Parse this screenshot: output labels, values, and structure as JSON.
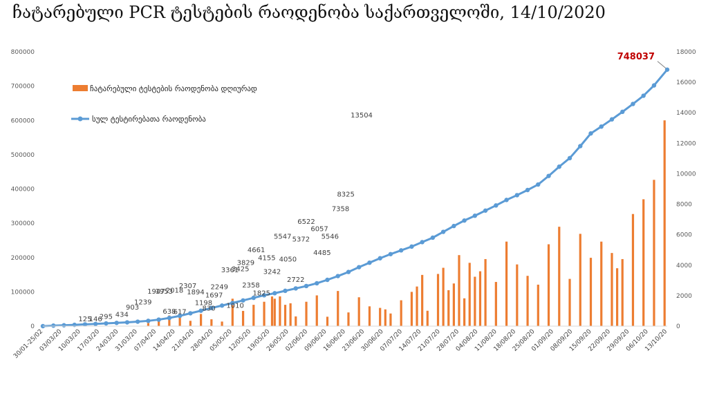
{
  "chart_data": {
    "type": "bar+line",
    "title": "ჩატარებული PCR ტესტების რაოდენობა საქართველოში, 14/10/2020",
    "colors": {
      "bars": "#ed7d31",
      "line": "#5b9bd5",
      "last_label": "#c00000"
    },
    "legend": {
      "position": "top-left",
      "items": [
        {
          "name": "ჩატარებული ტესტების რაოდენობა დღიურად",
          "type": "bar"
        },
        {
          "name": "სულ ტესტირებათა რაოდენობა",
          "type": "line"
        }
      ]
    },
    "y_left": {
      "min": 0,
      "max": 800000,
      "ticks": [
        "0",
        "100000",
        "200000",
        "300000",
        "400000",
        "500000",
        "600000",
        "700000",
        "800000"
      ]
    },
    "y_right": {
      "min": 0,
      "max": 18000,
      "ticks": [
        "0",
        "2000",
        "4000",
        "6000",
        "8000",
        "10000",
        "12000",
        "14000",
        "16000",
        "18000"
      ]
    },
    "x_tick_labels": [
      "30/01-25/02",
      "03/03/20",
      "10/03/20",
      "17/03/20",
      "24/03/20",
      "31/03/20",
      "07/04/20",
      "14/04/20",
      "21/04/20",
      "28/04/20",
      "05/05/20",
      "12/05/20",
      "19/05/20",
      "26/05/20",
      "02/06/20",
      "09/06/20",
      "16/06/20",
      "23/06/20",
      "30/06/20",
      "07/07/20",
      "14/07/20",
      "21/07/20",
      "28/07/20",
      "04/08/20",
      "11/08/20",
      "18/08/20",
      "25/08/20",
      "01/09/20",
      "08/09/20",
      "15/09/20",
      "22/09/20",
      "29/09/20",
      "06/10/20",
      "13/10/20"
    ],
    "series": [
      {
        "name": "სულ ტესტირებათა რაოდენობა",
        "axis": "left",
        "x_tick_index": [
          0,
          4,
          8,
          12,
          16,
          20,
          24,
          28,
          32,
          36,
          40,
          44,
          48,
          52,
          56,
          60,
          64,
          68,
          72,
          76,
          80,
          84,
          88,
          92,
          96,
          100,
          104,
          108,
          112,
          116,
          120,
          124,
          128,
          132,
          136,
          140,
          144,
          148,
          152,
          156,
          160,
          164,
          168,
          172,
          176,
          180,
          184,
          188,
          192,
          196,
          200,
          204,
          208,
          212,
          216,
          220,
          224,
          228,
          232,
          237
        ],
        "values": [
          0,
          1500,
          2500,
          3800,
          5200,
          6500,
          8000,
          9500,
          11000,
          13000,
          15500,
          19000,
          24000,
          30000,
          37500,
          45000,
          53000,
          60000,
          67500,
          75000,
          82500,
          90000,
          96000,
          103000,
          110000,
          117000,
          125000,
          135000,
          146000,
          158000,
          172000,
          185000,
          198000,
          210000,
          221000,
          232000,
          245000,
          258000,
          275000,
          292000,
          308000,
          322000,
          337000,
          352000,
          368000,
          382000,
          397000,
          413000,
          438000,
          465000,
          490000,
          525000,
          562000,
          582000,
          603000,
          625000,
          648000,
          672000,
          702000,
          748037
        ]
      },
      {
        "name": "ჩატარებული ტესტების რაოდენობა დღიურად",
        "axis": "right",
        "x_tick_index": [
          40,
          44,
          48,
          52,
          56,
          60,
          64,
          68,
          72,
          76,
          80,
          84,
          87,
          88,
          90,
          92,
          94,
          96,
          100,
          104,
          108,
          112,
          116,
          120,
          124,
          128,
          130,
          132,
          136,
          140,
          142,
          144,
          146,
          150,
          152,
          154,
          156,
          158,
          160,
          162,
          164,
          166,
          168,
          172,
          176,
          180,
          184,
          188,
          192,
          196,
          200,
          204,
          208,
          212,
          216,
          218,
          220,
          224,
          228,
          232,
          236
        ],
        "values": [
          200,
          500,
          700,
          600,
          350,
          800,
          450,
          300,
          1800,
          1000,
          1400,
          1600,
          1947,
          1800,
          1953,
          1400,
          1500,
          638,
          1600,
          2018,
          617,
          2307,
          900,
          1894,
          1300,
          1198,
          1100,
          830,
          1697,
          2249,
          2600,
          3361,
          1010,
          3425,
          3829,
          2358,
          2800,
          4661,
          1825,
          4155,
          3242,
          3600,
          4400,
          2900,
          5547,
          4050,
          3300,
          2722,
          5372,
          6522,
          3100,
          6057,
          4485,
          5546,
          4800,
          3800,
          4400,
          7358,
          8325,
          9600,
          13504
        ]
      }
    ],
    "data_labels": [
      {
        "text": "125",
        "x_tick_index": 16,
        "value": 125,
        "axis": "right"
      },
      {
        "text": "146",
        "x_tick_index": 20,
        "value": 146,
        "axis": "right"
      },
      {
        "text": "295",
        "x_tick_index": 24,
        "value": 295,
        "axis": "right"
      },
      {
        "text": "434",
        "x_tick_index": 30,
        "value": 434,
        "axis": "right"
      },
      {
        "text": "903",
        "x_tick_index": 34,
        "value": 903,
        "axis": "right"
      },
      {
        "text": "1239",
        "x_tick_index": 38,
        "value": 1239,
        "axis": "right"
      },
      {
        "text": "1947",
        "x_tick_index": 43,
        "value": 1947,
        "axis": "right"
      },
      {
        "text": "1953",
        "x_tick_index": 46,
        "value": 1953,
        "axis": "right"
      },
      {
        "text": "638",
        "x_tick_index": 48,
        "value": 638,
        "axis": "right"
      },
      {
        "text": "2018",
        "x_tick_index": 50,
        "value": 2018,
        "axis": "right"
      },
      {
        "text": "617",
        "x_tick_index": 52,
        "value": 617,
        "axis": "right"
      },
      {
        "text": "2307",
        "x_tick_index": 55,
        "value": 2307,
        "axis": "right"
      },
      {
        "text": "1894",
        "x_tick_index": 58,
        "value": 1894,
        "axis": "right"
      },
      {
        "text": "1198",
        "x_tick_index": 61,
        "value": 1198,
        "axis": "right"
      },
      {
        "text": "830",
        "x_tick_index": 63,
        "value": 830,
        "axis": "right"
      },
      {
        "text": "1697",
        "x_tick_index": 65,
        "value": 1697,
        "axis": "right"
      },
      {
        "text": "2249",
        "x_tick_index": 67,
        "value": 2249,
        "axis": "right"
      },
      {
        "text": "3361",
        "x_tick_index": 71,
        "value": 3361,
        "axis": "right"
      },
      {
        "text": "1010",
        "x_tick_index": 73,
        "value": 1010,
        "axis": "right"
      },
      {
        "text": "3425",
        "x_tick_index": 75,
        "value": 3425,
        "axis": "right"
      },
      {
        "text": "3829",
        "x_tick_index": 77,
        "value": 3829,
        "axis": "right"
      },
      {
        "text": "2358",
        "x_tick_index": 79,
        "value": 2358,
        "axis": "right"
      },
      {
        "text": "4661",
        "x_tick_index": 81,
        "value": 4661,
        "axis": "right"
      },
      {
        "text": "1825",
        "x_tick_index": 83,
        "value": 1825,
        "axis": "right"
      },
      {
        "text": "4155",
        "x_tick_index": 85,
        "value": 4155,
        "axis": "right"
      },
      {
        "text": "3242",
        "x_tick_index": 87,
        "value": 3242,
        "axis": "right"
      },
      {
        "text": "5547",
        "x_tick_index": 91,
        "value": 5547,
        "axis": "right"
      },
      {
        "text": "4050",
        "x_tick_index": 93,
        "value": 4050,
        "axis": "right"
      },
      {
        "text": "2722",
        "x_tick_index": 96,
        "value": 2722,
        "axis": "right"
      },
      {
        "text": "5372",
        "x_tick_index": 98,
        "value": 5372,
        "axis": "right"
      },
      {
        "text": "6522",
        "x_tick_index": 100,
        "value": 6522,
        "axis": "right"
      },
      {
        "text": "6057",
        "x_tick_index": 105,
        "value": 6057,
        "axis": "right"
      },
      {
        "text": "4485",
        "x_tick_index": 106,
        "value": 4485,
        "axis": "right"
      },
      {
        "text": "5546",
        "x_tick_index": 109,
        "value": 5546,
        "axis": "right"
      },
      {
        "text": "7358",
        "x_tick_index": 113,
        "value": 7358,
        "axis": "right"
      },
      {
        "text": "8325",
        "x_tick_index": 115,
        "value": 8325,
        "axis": "right"
      },
      {
        "text": "13504",
        "x_tick_index": 121,
        "value": 13504,
        "axis": "right"
      },
      {
        "text": "748037",
        "x_tick_index": 237,
        "value": 748037,
        "axis": "left",
        "style": "highlight"
      }
    ],
    "grid": false
  }
}
